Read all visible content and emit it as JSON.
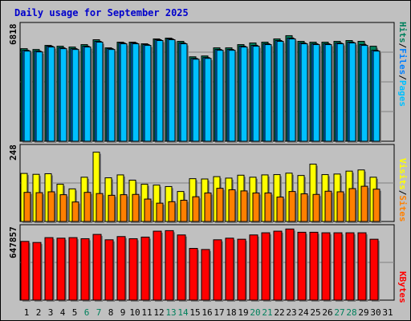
{
  "title": "Daily usage for September 2025",
  "legend": {
    "pages": "Pages",
    "files": "Files",
    "hits": "Hits",
    "sites": "Sites",
    "visits": "Visits",
    "kbytes": "KBytes",
    "separator": "/"
  },
  "colors": {
    "hits": "#00805c",
    "files": "#0080ff",
    "pages": "#00c0ff",
    "visits": "#ffff00",
    "sites": "#ff8000",
    "kbytes": "#ff0000",
    "weekday": "#000000",
    "weekend": "#00805c",
    "title": "#0000cc"
  },
  "chart_data": [
    {
      "type": "bar",
      "name": "hits-files-pages",
      "ymax_label": "6818",
      "ylim": [
        0,
        6818
      ],
      "days": [
        "1",
        "2",
        "3",
        "4",
        "5",
        "6",
        "7",
        "8",
        "9",
        "10",
        "11",
        "12",
        "13",
        "14",
        "15",
        "16",
        "17",
        "18",
        "19",
        "20",
        "21",
        "22",
        "23",
        "24",
        "25",
        "26",
        "27",
        "28",
        "29",
        "30",
        "31"
      ],
      "series": [
        {
          "name": "Hits",
          "values": [
            5700,
            5650,
            5900,
            5850,
            5800,
            5950,
            6250,
            5750,
            6100,
            6100,
            6000,
            6300,
            6350,
            6150,
            5200,
            5250,
            5750,
            5750,
            5950,
            6050,
            6100,
            6300,
            6500,
            6150,
            6100,
            6100,
            6150,
            6200,
            6150,
            5850,
            null
          ]
        },
        {
          "name": "Files",
          "values": [
            5600,
            5550,
            5850,
            5750,
            5700,
            5850,
            6150,
            5700,
            6050,
            6050,
            5950,
            6250,
            6300,
            6050,
            5100,
            5150,
            5650,
            5650,
            5850,
            5900,
            6000,
            6200,
            6350,
            6050,
            6000,
            6000,
            6050,
            6100,
            5950,
            5600,
            null
          ]
        },
        {
          "name": "Pages",
          "values": [
            5550,
            5500,
            5800,
            5700,
            5650,
            5800,
            6100,
            5650,
            6000,
            6000,
            5900,
            6200,
            6250,
            6000,
            5050,
            5100,
            5600,
            5600,
            5800,
            5850,
            5950,
            6150,
            6300,
            6000,
            5950,
            5950,
            6000,
            6050,
            5900,
            5550,
            null
          ]
        }
      ]
    },
    {
      "type": "bar",
      "name": "visits-sites",
      "ymax_label": "248",
      "ylim": [
        0,
        248
      ],
      "series": [
        {
          "name": "Visits",
          "values": [
            165,
            162,
            164,
            128,
            112,
            152,
            238,
            150,
            160,
            142,
            128,
            125,
            120,
            103,
            147,
            146,
            154,
            149,
            159,
            152,
            160,
            161,
            166,
            158,
            197,
            161,
            163,
            173,
            177,
            152,
            null
          ]
        },
        {
          "name": "Sites",
          "values": [
            100,
            99,
            102,
            92,
            67,
            100,
            96,
            90,
            92,
            93,
            77,
            63,
            68,
            73,
            85,
            98,
            114,
            109,
            105,
            98,
            98,
            84,
            103,
            95,
            93,
            104,
            102,
            113,
            121,
            111,
            null
          ]
        }
      ]
    },
    {
      "type": "bar",
      "name": "kbytes",
      "ymax_label": "647857",
      "ylim": [
        0,
        647857
      ],
      "series": [
        {
          "name": "KBytes",
          "values": [
            545000,
            535000,
            580000,
            575000,
            580000,
            570000,
            610000,
            560000,
            590000,
            570000,
            585000,
            640000,
            645000,
            605000,
            480000,
            470000,
            560000,
            575000,
            565000,
            605000,
            625000,
            640000,
            660000,
            630000,
            630000,
            625000,
            625000,
            625000,
            625000,
            565000,
            null
          ]
        }
      ]
    }
  ]
}
